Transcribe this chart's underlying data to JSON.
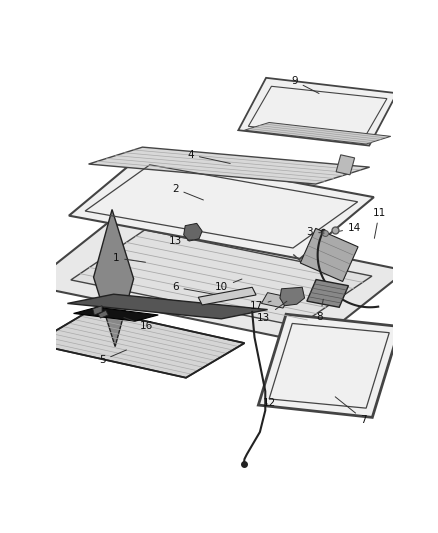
{
  "bg_color": "#ffffff",
  "fig_width": 4.38,
  "fig_height": 5.33,
  "dpi": 100,
  "line_color": "#333333",
  "label_color": "#111111",
  "label_fontsize": 7.5,
  "parts_color": "#555555",
  "glass_edge": "#444444",
  "glass_fill": "#f0f0f0",
  "frame_fill": "#e8e8e8",
  "dark": "#222222"
}
